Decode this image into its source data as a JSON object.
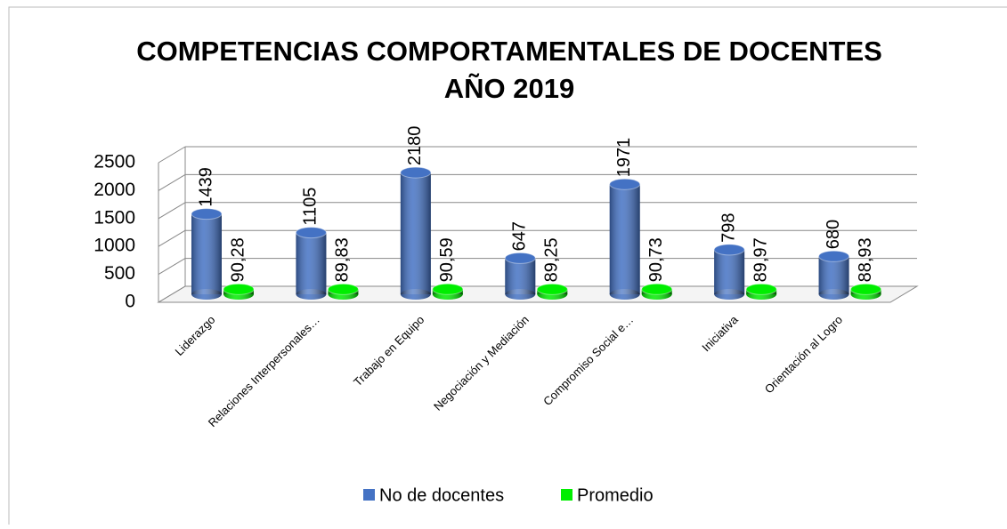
{
  "chart_data": {
    "type": "bar3d",
    "title": [
      "COMPETENCIAS COMPORTAMENTALES DE DOCENTES",
      "AÑO 2019"
    ],
    "categories": [
      "Liderazgo",
      "Relaciones Interpersonales…",
      "Trabajo en Equipo",
      "Negociación y Mediación",
      "Compromiso Social e…",
      "Iniciativa",
      "Orientación al Logro"
    ],
    "series": [
      {
        "name": "No de docentes",
        "color": "#4472c4",
        "values": [
          1439,
          1105,
          2180,
          647,
          1971,
          798,
          680
        ]
      },
      {
        "name": "Promedio",
        "color": "#00ee00",
        "values": [
          90.28,
          89.83,
          90.59,
          89.25,
          90.73,
          89.97,
          88.93
        ],
        "value_labels": [
          "90,28",
          "89,83",
          "90,59",
          "89,25",
          "90,73",
          "89,97",
          "88,93"
        ]
      }
    ],
    "ylim": [
      0,
      2500
    ],
    "yticks": [
      0,
      500,
      1000,
      1500,
      2000,
      2500
    ],
    "grid": true,
    "legend": "bottom"
  }
}
